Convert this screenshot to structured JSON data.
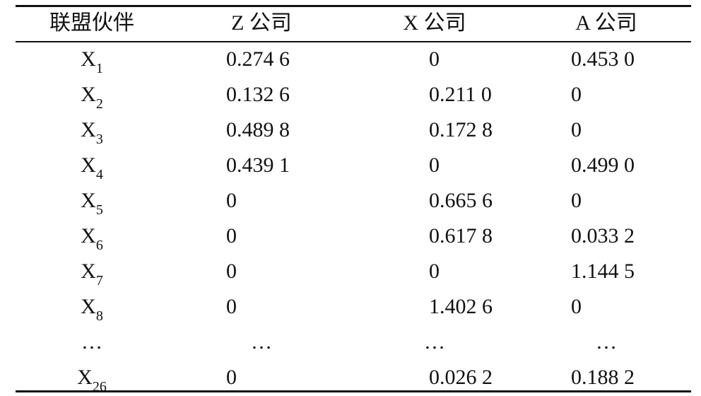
{
  "table": {
    "header": [
      "联盟伙伴",
      "Z 公司",
      "X 公司",
      "A 公司"
    ],
    "rows": [
      [
        {
          "text": "X",
          "sub": "1"
        },
        "0.274 6",
        "0",
        "0.453 0"
      ],
      [
        {
          "text": "X",
          "sub": "2"
        },
        "0.132 6",
        "0.211 0",
        "0"
      ],
      [
        {
          "text": "X",
          "sub": "3"
        },
        "0.489 8",
        "0.172 8",
        "0"
      ],
      [
        {
          "text": "X",
          "sub": "4"
        },
        "0.439 1",
        "0",
        "0.499 0"
      ],
      [
        {
          "text": "X",
          "sub": "5"
        },
        "0",
        "0.665 6",
        "0"
      ],
      [
        {
          "text": "X",
          "sub": "6"
        },
        "0",
        "0.617 8",
        "0.033 2"
      ],
      [
        {
          "text": "X",
          "sub": "7"
        },
        "0",
        "0",
        "1.144 5"
      ],
      [
        {
          "text": "X",
          "sub": "8"
        },
        "0",
        "1.402 6",
        "0"
      ],
      [
        {
          "text": "…"
        },
        "…",
        "…",
        "…"
      ],
      [
        {
          "text": "X",
          "sub": "26"
        },
        "0",
        "0.026 2",
        "0.188 2"
      ]
    ]
  }
}
